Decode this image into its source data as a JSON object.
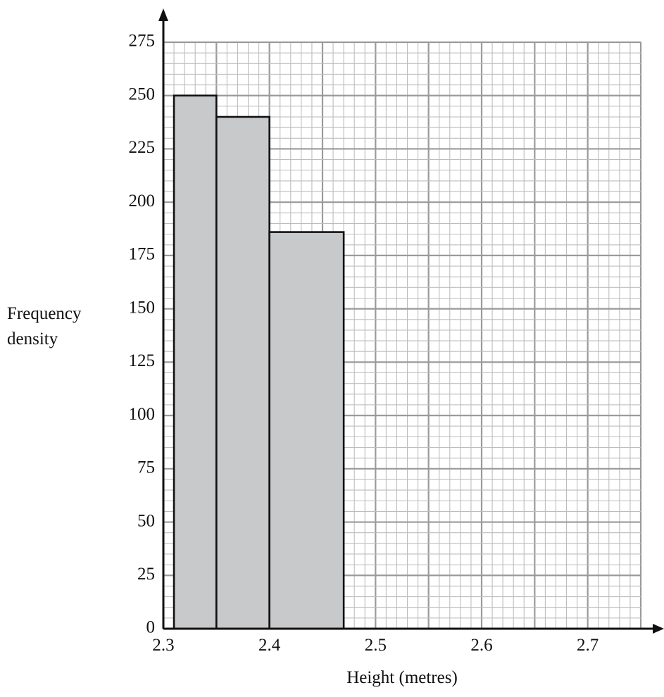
{
  "chart_data": {
    "type": "bar",
    "title": "",
    "xlabel": "Height (metres)",
    "ylabel_lines": [
      "Frequency",
      "density"
    ],
    "xlim": [
      2.3,
      2.75
    ],
    "ylim": [
      0,
      275
    ],
    "x_ticks": [
      2.3,
      2.4,
      2.5,
      2.6,
      2.7
    ],
    "x_tick_labels": [
      "2.3",
      "2.4",
      "2.5",
      "2.6",
      "2.7"
    ],
    "y_ticks": [
      0,
      25,
      50,
      75,
      100,
      125,
      150,
      175,
      200,
      225,
      250,
      275
    ],
    "y_tick_labels": [
      "0",
      "25",
      "50",
      "75",
      "100",
      "125",
      "150",
      "175",
      "200",
      "225",
      "250",
      "275"
    ],
    "grid": true,
    "bars": [
      {
        "x_start": 2.31,
        "x_end": 2.35,
        "value": 250
      },
      {
        "x_start": 2.35,
        "x_end": 2.4,
        "value": 240
      },
      {
        "x_start": 2.4,
        "x_end": 2.47,
        "value": 186
      }
    ],
    "colors": {
      "bar_fill": "#c8c9cb",
      "bar_stroke": "#111111",
      "grid_minor": "#bdbdbd",
      "grid_major": "#9a9a9a",
      "axis": "#111111"
    }
  }
}
